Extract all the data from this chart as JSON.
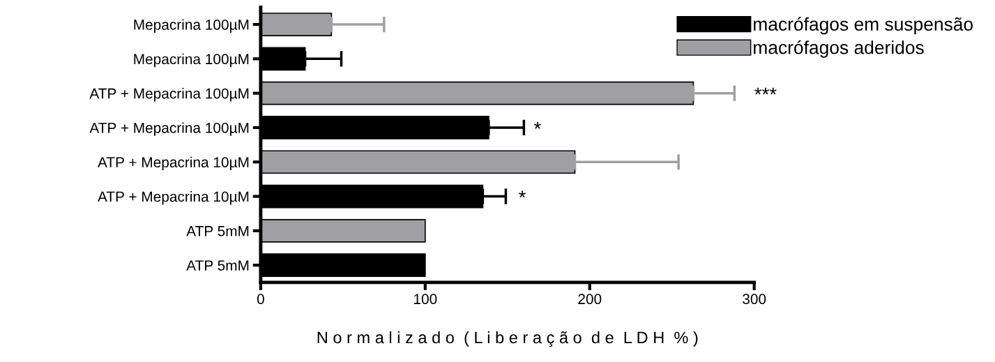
{
  "chart_data": {
    "type": "bar",
    "orientation": "horizontal",
    "xlabel": "N o r m a l i z a d o  ( L i b e r a ç ã o  d e  L D H  % )",
    "categories": [
      "Mepacrina 100µM",
      "Mepacrina 100µM",
      "ATP + Mepacrina 100µM",
      "ATP + Mepacrina 100µM",
      "ATP + Mepacrina 10µM",
      "ATP + Mepacrina 10µM",
      "ATP 5mM",
      "ATP 5mM"
    ],
    "series": [
      {
        "name": "macrófagos em suspensão",
        "color": "#000000",
        "values": [
          null,
          27,
          null,
          138.6,
          null,
          135,
          null,
          100
        ],
        "errors": [
          null,
          [
            27,
            49
          ],
          null,
          [
            138.6,
            160
          ],
          null,
          [
            135,
            149
          ],
          null,
          null
        ]
      },
      {
        "name": "macrófagos aderidos",
        "color": "#a0a0a4",
        "values": [
          43,
          null,
          263,
          null,
          191,
          null,
          100,
          null
        ],
        "errors": [
          [
            43,
            75
          ],
          null,
          [
            263,
            288
          ],
          null,
          [
            191,
            254
          ],
          null,
          null,
          null
        ]
      }
    ],
    "xlim": [
      0,
      300
    ],
    "xticks": [
      0,
      100,
      200,
      300
    ],
    "grid": false,
    "legend": "top right",
    "annotations": [
      "***",
      "*",
      "*"
    ]
  }
}
